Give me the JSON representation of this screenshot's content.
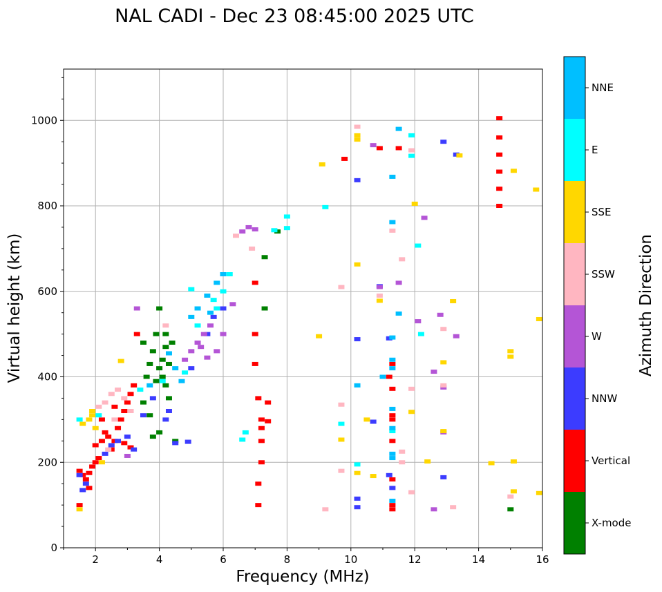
{
  "chart_data": {
    "type": "scatter",
    "title": "NAL CADI - Dec 23 08:45:00 2025 UTC",
    "xlabel": "Frequency (MHz)",
    "ylabel": "Virtual height (km)",
    "xlim": [
      1,
      16
    ],
    "ylim": [
      0,
      1120
    ],
    "xticks": [
      2,
      4,
      6,
      8,
      10,
      12,
      14,
      16
    ],
    "yticks": [
      0,
      200,
      400,
      600,
      800,
      1000
    ],
    "grid": true,
    "colorbar": {
      "label": "Azimuth Direction",
      "categories": [
        {
          "name": "X-mode",
          "color": "#008000"
        },
        {
          "name": "Vertical",
          "color": "#ff0000"
        },
        {
          "name": "NNW",
          "color": "#3c3cff"
        },
        {
          "name": "W",
          "color": "#b455d6"
        },
        {
          "name": "SSW",
          "color": "#ffb6c1"
        },
        {
          "name": "SSE",
          "color": "#ffd700"
        },
        {
          "name": "E",
          "color": "#00ffff"
        },
        {
          "name": "NNE",
          "color": "#00bfff"
        }
      ]
    },
    "series": [
      {
        "name": "Vertical",
        "points": [
          [
            1.5,
            180
          ],
          [
            1.6,
            170
          ],
          [
            1.7,
            160
          ],
          [
            1.8,
            175
          ],
          [
            1.9,
            190
          ],
          [
            2.0,
            200
          ],
          [
            2.1,
            210
          ],
          [
            2.2,
            250
          ],
          [
            2.3,
            270
          ],
          [
            2.4,
            260
          ],
          [
            2.5,
            230
          ],
          [
            2.6,
            250
          ],
          [
            2.7,
            280
          ],
          [
            2.8,
            300
          ],
          [
            2.9,
            320
          ],
          [
            3.0,
            340
          ],
          [
            3.1,
            360
          ],
          [
            3.2,
            380
          ],
          [
            3.3,
            500
          ],
          [
            2.6,
            330
          ],
          [
            2.9,
            245
          ],
          [
            3.1,
            235
          ],
          [
            2.2,
            300
          ],
          [
            2.0,
            240
          ],
          [
            1.8,
            140
          ],
          [
            1.5,
            100
          ],
          [
            14.65,
            1005
          ],
          [
            14.65,
            960
          ],
          [
            14.65,
            920
          ],
          [
            14.65,
            880
          ],
          [
            14.65,
            840
          ],
          [
            14.65,
            800
          ],
          [
            11.3,
            372
          ],
          [
            11.3,
            310
          ],
          [
            11.3,
            300
          ],
          [
            11.3,
            250
          ],
          [
            11.3,
            160
          ],
          [
            11.3,
            100
          ],
          [
            11.3,
            90
          ],
          [
            11.2,
            400
          ],
          [
            11.3,
            430
          ],
          [
            7.0,
            500
          ],
          [
            7.0,
            430
          ],
          [
            7.1,
            350
          ],
          [
            7.2,
            300
          ],
          [
            7.2,
            280
          ],
          [
            7.2,
            250
          ],
          [
            7.2,
            200
          ],
          [
            7.1,
            150
          ],
          [
            7.1,
            100
          ],
          [
            7.4,
            340
          ],
          [
            7.4,
            296
          ],
          [
            10.9,
            935
          ],
          [
            9.8,
            910
          ],
          [
            11.5,
            935
          ],
          [
            7.0,
            620
          ]
        ]
      },
      {
        "name": "X-mode",
        "points": [
          [
            3.5,
            340
          ],
          [
            3.6,
            400
          ],
          [
            3.7,
            430
          ],
          [
            3.8,
            460
          ],
          [
            3.9,
            500
          ],
          [
            4.0,
            420
          ],
          [
            4.1,
            440
          ],
          [
            4.2,
            380
          ],
          [
            4.3,
            350
          ],
          [
            4.0,
            560
          ],
          [
            3.7,
            310
          ],
          [
            4.1,
            400
          ],
          [
            4.3,
            430
          ],
          [
            4.2,
            500
          ],
          [
            3.8,
            260
          ],
          [
            4.0,
            270
          ],
          [
            4.5,
            250
          ],
          [
            3.9,
            390
          ],
          [
            4.4,
            480
          ],
          [
            15.0,
            90
          ],
          [
            7.3,
            560
          ],
          [
            7.3,
            680
          ],
          [
            7.7,
            740
          ],
          [
            3.5,
            480
          ],
          [
            4.2,
            470
          ]
        ]
      },
      {
        "name": "NNW",
        "points": [
          [
            1.5,
            170
          ],
          [
            1.7,
            150
          ],
          [
            1.6,
            135
          ],
          [
            2.3,
            220
          ],
          [
            2.5,
            240
          ],
          [
            2.7,
            250
          ],
          [
            3.0,
            260
          ],
          [
            3.2,
            230
          ],
          [
            3.5,
            310
          ],
          [
            3.8,
            350
          ],
          [
            4.2,
            300
          ],
          [
            4.5,
            245
          ],
          [
            4.3,
            320
          ],
          [
            5.0,
            420
          ],
          [
            5.5,
            500
          ],
          [
            5.7,
            540
          ],
          [
            6.0,
            560
          ],
          [
            10.2,
            860
          ],
          [
            12.9,
            950
          ],
          [
            12.9,
            165
          ],
          [
            10.2,
            95
          ],
          [
            10.2,
            115
          ],
          [
            10.2,
            488
          ],
          [
            10.7,
            295
          ],
          [
            11.2,
            170
          ],
          [
            11.3,
            140
          ],
          [
            10.9,
            612
          ],
          [
            11.2,
            490
          ],
          [
            13.3,
            920
          ],
          [
            4.9,
            248
          ]
        ]
      },
      {
        "name": "W",
        "points": [
          [
            4.8,
            440
          ],
          [
            5.0,
            460
          ],
          [
            5.2,
            480
          ],
          [
            5.4,
            500
          ],
          [
            5.6,
            520
          ],
          [
            5.8,
            460
          ],
          [
            6.0,
            500
          ],
          [
            5.5,
            445
          ],
          [
            6.3,
            570
          ],
          [
            6.6,
            740
          ],
          [
            6.8,
            750
          ],
          [
            7.0,
            745
          ],
          [
            5.3,
            470
          ],
          [
            12.3,
            772
          ],
          [
            12.8,
            545
          ],
          [
            13.3,
            495
          ],
          [
            12.6,
            90
          ],
          [
            12.9,
            270
          ],
          [
            12.9,
            375
          ],
          [
            12.6,
            412
          ],
          [
            10.7,
            942
          ],
          [
            11.5,
            620
          ],
          [
            12.1,
            530
          ],
          [
            10.9,
            610
          ],
          [
            3.3,
            560
          ],
          [
            3.0,
            215
          ]
        ]
      },
      {
        "name": "SSW",
        "points": [
          [
            2.1,
            330
          ],
          [
            2.3,
            340
          ],
          [
            2.5,
            360
          ],
          [
            2.7,
            370
          ],
          [
            2.9,
            350
          ],
          [
            3.1,
            320
          ],
          [
            2.4,
            230
          ],
          [
            2.6,
            300
          ],
          [
            6.4,
            730
          ],
          [
            6.9,
            700
          ],
          [
            10.2,
            985
          ],
          [
            11.9,
            930
          ],
          [
            11.3,
            742
          ],
          [
            11.6,
            675
          ],
          [
            12.9,
            512
          ],
          [
            12.9,
            380
          ],
          [
            13.2,
            95
          ],
          [
            15.0,
            120
          ],
          [
            9.2,
            90
          ],
          [
            9.7,
            180
          ],
          [
            9.7,
            335
          ],
          [
            11.6,
            200
          ],
          [
            11.6,
            225
          ],
          [
            11.9,
            130
          ],
          [
            10.9,
            590
          ],
          [
            11.9,
            372
          ],
          [
            9.7,
            610
          ],
          [
            4.2,
            520
          ]
        ]
      },
      {
        "name": "SSE",
        "points": [
          [
            1.6,
            290
          ],
          [
            1.8,
            300
          ],
          [
            1.9,
            310
          ],
          [
            2.0,
            280
          ],
          [
            1.9,
            320
          ],
          [
            2.2,
            200
          ],
          [
            1.5,
            90
          ],
          [
            9.1,
            897
          ],
          [
            9.0,
            495
          ],
          [
            10.2,
            955
          ],
          [
            10.2,
            965
          ],
          [
            12.0,
            805
          ],
          [
            13.4,
            918
          ],
          [
            15.1,
            882
          ],
          [
            15.8,
            838
          ],
          [
            15.9,
            535
          ],
          [
            15.0,
            460
          ],
          [
            15.0,
            447
          ],
          [
            12.9,
            273
          ],
          [
            12.4,
            202
          ],
          [
            14.4,
            198
          ],
          [
            15.1,
            202
          ],
          [
            15.1,
            132
          ],
          [
            15.9,
            128
          ],
          [
            10.2,
            175
          ],
          [
            10.7,
            168
          ],
          [
            10.5,
            300
          ],
          [
            9.7,
            253
          ],
          [
            10.2,
            663
          ],
          [
            10.9,
            578
          ],
          [
            12.9,
            434
          ],
          [
            13.2,
            577
          ],
          [
            11.9,
            318
          ],
          [
            2.8,
            437
          ]
        ]
      },
      {
        "name": "E",
        "points": [
          [
            5.8,
            560
          ],
          [
            6.0,
            600
          ],
          [
            5.7,
            580
          ],
          [
            4.8,
            410
          ],
          [
            5.2,
            520
          ],
          [
            5.0,
            605
          ],
          [
            3.4,
            370
          ],
          [
            4.1,
            390
          ],
          [
            8.0,
            775
          ],
          [
            8.0,
            748
          ],
          [
            7.6,
            743
          ],
          [
            9.2,
            797
          ],
          [
            11.9,
            965
          ],
          [
            11.9,
            917
          ],
          [
            12.1,
            707
          ],
          [
            12.2,
            500
          ],
          [
            9.7,
            290
          ],
          [
            10.2,
            195
          ],
          [
            6.6,
            253
          ],
          [
            6.7,
            270
          ],
          [
            11.3,
            273
          ],
          [
            1.5,
            300
          ],
          [
            6.2,
            640
          ],
          [
            2.1,
            310
          ]
        ]
      },
      {
        "name": "NNE",
        "points": [
          [
            5.0,
            540
          ],
          [
            5.2,
            560
          ],
          [
            5.5,
            590
          ],
          [
            5.8,
            620
          ],
          [
            6.0,
            640
          ],
          [
            5.6,
            550
          ],
          [
            4.5,
            420
          ],
          [
            4.7,
            390
          ],
          [
            11.3,
            868
          ],
          [
            11.3,
            762
          ],
          [
            11.3,
            492
          ],
          [
            11.3,
            440
          ],
          [
            11.3,
            420
          ],
          [
            11.3,
            325
          ],
          [
            11.3,
            280
          ],
          [
            11.3,
            220
          ],
          [
            11.3,
            210
          ],
          [
            11.3,
            110
          ],
          [
            11.5,
            980
          ],
          [
            11.5,
            548
          ],
          [
            10.2,
            380
          ],
          [
            11.0,
            400
          ],
          [
            3.7,
            380
          ],
          [
            4.3,
            455
          ]
        ]
      }
    ]
  }
}
